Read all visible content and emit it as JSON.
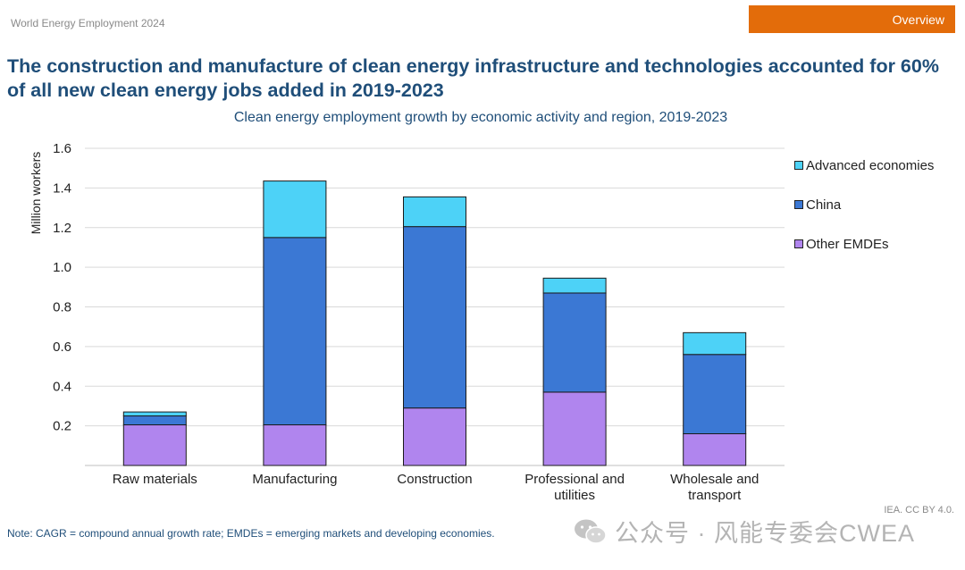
{
  "header": {
    "report_name": "World Energy Employment 2024",
    "section_button": "Overview",
    "accent_color": "#e36c0a"
  },
  "headline": "The construction and manufacture of clean energy infrastructure and technologies accounted for 60% of all new clean energy jobs added in 2019-2023",
  "chart_data": {
    "type": "bar",
    "stacked": true,
    "title": "Clean energy employment growth by economic activity and region, 2019-2023",
    "xlabel": "",
    "ylabel": "Million workers",
    "ylim": [
      0,
      1.6
    ],
    "yticks": [
      "0.2",
      "0.4",
      "0.6",
      "0.8",
      "1.0",
      "1.2",
      "1.4",
      "1.6"
    ],
    "grid": true,
    "legend_position": "right",
    "categories": [
      [
        "Raw materials"
      ],
      [
        "Manufacturing"
      ],
      [
        "Construction"
      ],
      [
        "Professional and",
        "utilities"
      ],
      [
        "Wholesale and",
        "transport"
      ]
    ],
    "series": [
      {
        "name": "Other EMDEs",
        "color": "#b085ee",
        "values": [
          0.205,
          0.205,
          0.29,
          0.37,
          0.16
        ]
      },
      {
        "name": "China",
        "color": "#3b78d4",
        "values": [
          0.045,
          0.945,
          0.915,
          0.5,
          0.4
        ]
      },
      {
        "name": "Advanced economies",
        "color": "#4dd2f7",
        "values": [
          0.02,
          0.285,
          0.15,
          0.075,
          0.11
        ]
      }
    ]
  },
  "footer": {
    "credit": "IEA. CC BY 4.0.",
    "note": "Note: CAGR = compound annual growth rate; EMDEs = emerging markets and developing economies.",
    "watermark": "公众号 · 风能专委会CWEA"
  }
}
